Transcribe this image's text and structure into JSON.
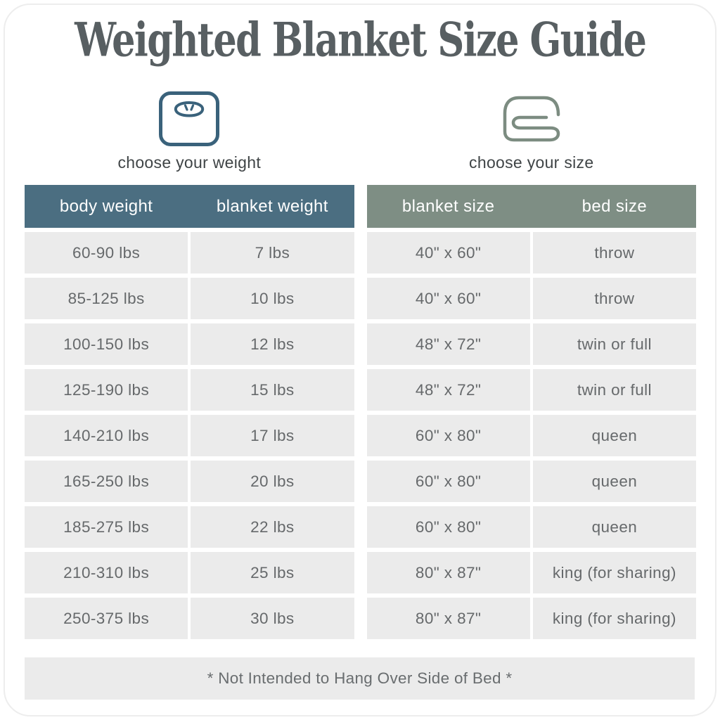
{
  "page": {
    "title": "Weighted Blanket Size Guide",
    "footer_note": "* Not Intended to Hang Over Side of Bed *"
  },
  "icons": {
    "weight": "scale-icon",
    "size": "blanket-icon"
  },
  "colors": {
    "weight_header_bg": "#4b6e81",
    "size_header_bg": "#7e8e84",
    "row_bg": "#ebebeb",
    "header_text": "#ffffff",
    "cell_text": "#66696b",
    "caption_text": "#3f4446",
    "title_text": "#585f62",
    "scale_icon": "#3a627b",
    "blanket_icon": "#7c8c81",
    "card_border": "#ededed"
  },
  "chart_data": [
    {
      "type": "table",
      "title": "choose your weight",
      "columns": [
        "body weight",
        "blanket weight"
      ],
      "rows": [
        [
          "60-90 lbs",
          "7 lbs"
        ],
        [
          "85-125 lbs",
          "10 lbs"
        ],
        [
          "100-150 lbs",
          "12 lbs"
        ],
        [
          "125-190 lbs",
          "15 lbs"
        ],
        [
          "140-210 lbs",
          "17 lbs"
        ],
        [
          "165-250 lbs",
          "20 lbs"
        ],
        [
          "185-275 lbs",
          "22 lbs"
        ],
        [
          "210-310 lbs",
          "25 lbs"
        ],
        [
          "250-375 lbs",
          "30 lbs"
        ]
      ]
    },
    {
      "type": "table",
      "title": "choose your size",
      "columns": [
        "blanket size",
        "bed size"
      ],
      "rows": [
        [
          "40\" x 60\"",
          "throw"
        ],
        [
          "40\" x 60\"",
          "throw"
        ],
        [
          "48\" x 72\"",
          "twin or full"
        ],
        [
          "48\" x 72\"",
          "twin or full"
        ],
        [
          "60\" x 80\"",
          "queen"
        ],
        [
          "60\" x 80\"",
          "queen"
        ],
        [
          "60\" x 80\"",
          "queen"
        ],
        [
          "80\" x 87\"",
          "king (for sharing)"
        ],
        [
          "80\" x 87\"",
          "king (for sharing)"
        ]
      ]
    }
  ]
}
